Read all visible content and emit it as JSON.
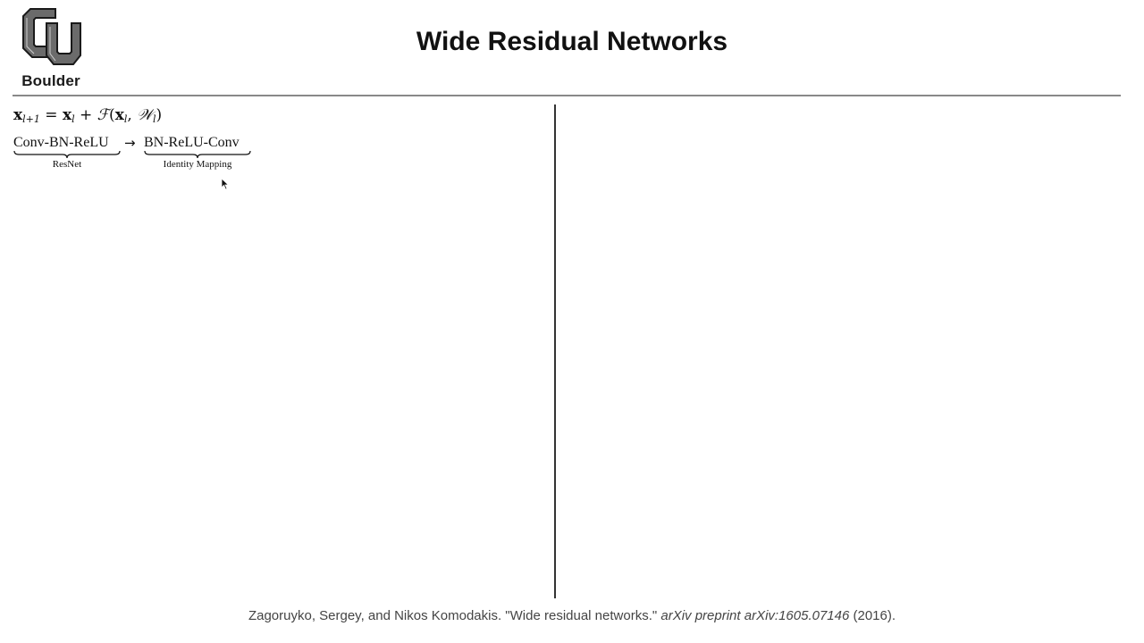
{
  "header": {
    "logo_text": "Boulder",
    "title": "Wide Residual Networks"
  },
  "equation": {
    "lhs_var": "x",
    "lhs_sub": "l+1",
    "equals": " = ",
    "term1_var": "x",
    "term1_sub": "l",
    "plus": " + ",
    "func": "ℱ",
    "open": "(",
    "arg1_var": "x",
    "arg1_sub": "l",
    "comma": ", ",
    "arg2_var": "𝒲",
    "arg2_sub": "l",
    "close": ")"
  },
  "ordering": {
    "left_term": "Conv-BN-ReLU",
    "left_label": "ResNet",
    "arrow": "→",
    "right_term": "BN-ReLU-Conv",
    "right_label": "Identity Mapping"
  },
  "footer": {
    "citation_authors": "Zagoruyko, Sergey, and Nikos Komodakis. \"Wide residual networks.\" ",
    "citation_venue": "arXiv preprint arXiv:1605.07146",
    "citation_year": " (2016)."
  },
  "icons": {
    "logo": "cu-logo-icon",
    "cursor": "mouse-cursor-icon"
  }
}
